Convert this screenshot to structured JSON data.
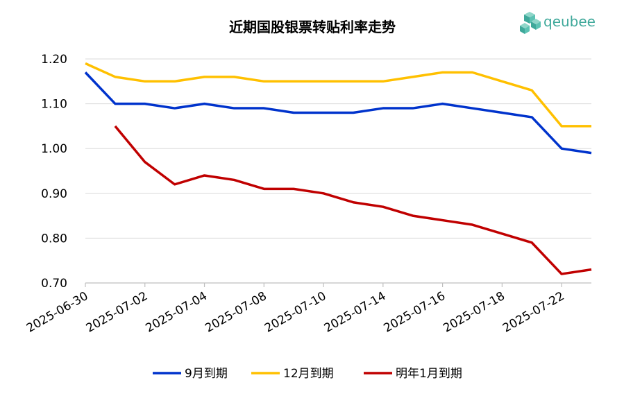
{
  "brand": {
    "name": "qeubee",
    "icon": "cube-logo-icon",
    "color": "#3ea89a"
  },
  "chart_data": {
    "type": "line",
    "title": "近期国股银票转贴利率走势",
    "xlabel": "",
    "ylabel": "",
    "ylim": [
      0.7,
      1.2
    ],
    "yticks": [
      "0.70",
      "0.80",
      "0.90",
      "1.00",
      "1.10",
      "1.20"
    ],
    "grid": "horizontal",
    "legend": "bottom",
    "x": [
      "2025-06-30",
      "2025-07-01",
      "2025-07-02",
      "2025-07-03",
      "2025-07-04",
      "2025-07-07",
      "2025-07-08",
      "2025-07-09",
      "2025-07-10",
      "2025-07-11",
      "2025-07-14",
      "2025-07-15",
      "2025-07-16",
      "2025-07-17",
      "2025-07-18",
      "2025-07-21",
      "2025-07-22",
      "2025-07-23"
    ],
    "xtick_labels": [
      "2025-06-30",
      "2025-07-02",
      "2025-07-04",
      "2025-07-08",
      "2025-07-10",
      "2025-07-14",
      "2025-07-16",
      "2025-07-18",
      "2025-07-22"
    ],
    "series": [
      {
        "name": "9月到期",
        "color": "#0033cc",
        "values": [
          1.17,
          1.1,
          1.1,
          1.09,
          1.1,
          1.09,
          1.09,
          1.08,
          1.08,
          1.08,
          1.09,
          1.09,
          1.1,
          1.09,
          1.08,
          1.07,
          1.0,
          0.99
        ]
      },
      {
        "name": "12月到期",
        "color": "#ffc000",
        "values": [
          1.19,
          1.16,
          1.15,
          1.15,
          1.16,
          1.16,
          1.15,
          1.15,
          1.15,
          1.15,
          1.15,
          1.16,
          1.17,
          1.17,
          1.15,
          1.13,
          1.05,
          1.05
        ]
      },
      {
        "name": "明年1月到期",
        "color": "#c00000",
        "values": [
          null,
          1.05,
          0.97,
          0.92,
          0.94,
          0.93,
          0.91,
          0.91,
          0.9,
          0.88,
          0.87,
          0.85,
          0.84,
          0.83,
          0.81,
          0.79,
          0.72,
          0.73
        ]
      }
    ]
  }
}
